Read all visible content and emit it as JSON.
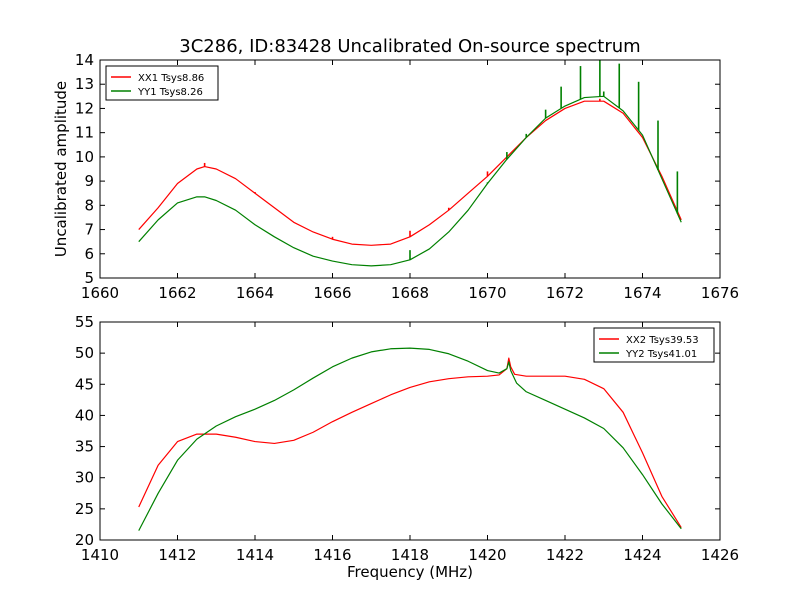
{
  "figure": {
    "title": "3C286, ID:83428 Uncalibrated On-source spectrum",
    "shared_xlabel": "Frequency (MHz)"
  },
  "chart_data": [
    {
      "type": "line",
      "title": "3C286, ID:83428 Uncalibrated On-source spectrum",
      "xlabel": "",
      "ylabel": "Uncalibrated amplitude",
      "xlim": [
        1660,
        1676
      ],
      "ylim": [
        5,
        14
      ],
      "xticks": [
        "1660",
        "1662",
        "1664",
        "1666",
        "1668",
        "1670",
        "1672",
        "1674",
        "1676"
      ],
      "yticks": [
        "5",
        "6",
        "7",
        "8",
        "9",
        "10",
        "11",
        "12",
        "13",
        "14"
      ],
      "grid": false,
      "legend_position": "top-left",
      "series": [
        {
          "name": "XX1 Tsys8.86",
          "color": "#ff0000",
          "x": [
            1661.0,
            1661.5,
            1662.0,
            1662.5,
            1662.7,
            1663.0,
            1663.5,
            1664.0,
            1664.5,
            1665.0,
            1665.5,
            1666.0,
            1666.5,
            1667.0,
            1667.5,
            1668.0,
            1668.5,
            1669.0,
            1669.5,
            1670.0,
            1670.5,
            1671.0,
            1671.5,
            1672.0,
            1672.5,
            1673.0,
            1673.5,
            1674.0,
            1674.5,
            1675.0
          ],
          "y": [
            7.0,
            7.9,
            8.9,
            9.5,
            9.6,
            9.5,
            9.1,
            8.5,
            7.9,
            7.3,
            6.9,
            6.6,
            6.4,
            6.35,
            6.4,
            6.7,
            7.2,
            7.8,
            8.5,
            9.2,
            10.0,
            10.8,
            11.5,
            12.0,
            12.3,
            12.3,
            11.8,
            10.8,
            9.2,
            7.4
          ],
          "spikes": [
            [
              1662.7,
              9.75
            ],
            [
              1664.0,
              8.55
            ],
            [
              1666.0,
              6.7
            ],
            [
              1668.0,
              6.95
            ],
            [
              1669.0,
              7.9
            ],
            [
              1670.0,
              9.4
            ],
            [
              1672.9,
              12.4
            ]
          ]
        },
        {
          "name": "YY1 Tsys8.26",
          "color": "#008000",
          "x": [
            1661.0,
            1661.5,
            1662.0,
            1662.5,
            1662.7,
            1663.0,
            1663.5,
            1664.0,
            1664.5,
            1665.0,
            1665.5,
            1666.0,
            1666.5,
            1667.0,
            1667.5,
            1668.0,
            1668.5,
            1669.0,
            1669.5,
            1670.0,
            1670.5,
            1671.0,
            1671.5,
            1672.0,
            1672.5,
            1673.0,
            1673.5,
            1674.0,
            1674.5,
            1675.0
          ],
          "y": [
            6.5,
            7.4,
            8.1,
            8.35,
            8.35,
            8.2,
            7.8,
            7.2,
            6.7,
            6.25,
            5.9,
            5.7,
            5.55,
            5.5,
            5.55,
            5.75,
            6.2,
            6.9,
            7.8,
            8.9,
            9.9,
            10.8,
            11.6,
            12.1,
            12.45,
            12.5,
            11.9,
            10.9,
            9.1,
            7.3
          ],
          "spikes": [
            [
              1668.0,
              6.15
            ],
            [
              1670.0,
              8.95
            ],
            [
              1670.5,
              10.2
            ],
            [
              1671.0,
              10.95
            ],
            [
              1671.5,
              11.95
            ],
            [
              1671.9,
              12.9
            ],
            [
              1672.4,
              13.75
            ],
            [
              1672.9,
              14.0
            ],
            [
              1673.0,
              12.7
            ],
            [
              1673.4,
              13.85
            ],
            [
              1673.9,
              13.1
            ],
            [
              1674.4,
              11.5
            ],
            [
              1674.9,
              9.4
            ]
          ]
        }
      ]
    },
    {
      "type": "line",
      "title": "",
      "xlabel": "Frequency (MHz)",
      "ylabel": "",
      "xlim": [
        1410,
        1426
      ],
      "ylim": [
        20,
        55
      ],
      "xticks": [
        "1410",
        "1412",
        "1414",
        "1416",
        "1418",
        "1420",
        "1422",
        "1424",
        "1426"
      ],
      "yticks": [
        "20",
        "25",
        "30",
        "35",
        "40",
        "45",
        "50",
        "55"
      ],
      "grid": false,
      "legend_position": "top-right",
      "series": [
        {
          "name": "XX2 Tsys39.53",
          "color": "#ff0000",
          "x": [
            1411.0,
            1411.5,
            1412.0,
            1412.5,
            1413.0,
            1413.5,
            1414.0,
            1414.5,
            1415.0,
            1415.5,
            1416.0,
            1416.5,
            1417.0,
            1417.5,
            1418.0,
            1418.5,
            1419.0,
            1419.5,
            1420.0,
            1420.3,
            1420.5,
            1420.55,
            1420.6,
            1420.7,
            1421.0,
            1421.5,
            1422.0,
            1422.5,
            1423.0,
            1423.5,
            1424.0,
            1424.5,
            1425.0
          ],
          "y": [
            25.3,
            32.0,
            35.8,
            37.0,
            37.0,
            36.5,
            35.8,
            35.5,
            36.0,
            37.3,
            39.0,
            40.5,
            41.9,
            43.3,
            44.5,
            45.4,
            45.9,
            46.2,
            46.3,
            46.5,
            47.5,
            49.2,
            47.8,
            46.6,
            46.3,
            46.3,
            46.3,
            45.8,
            44.3,
            40.5,
            34.0,
            27.0,
            22.0
          ]
        },
        {
          "name": "YY2 Tsys41.01",
          "color": "#008000",
          "x": [
            1411.0,
            1411.5,
            1412.0,
            1412.5,
            1413.0,
            1413.5,
            1414.0,
            1414.5,
            1415.0,
            1415.5,
            1416.0,
            1416.5,
            1417.0,
            1417.5,
            1418.0,
            1418.5,
            1419.0,
            1419.5,
            1420.0,
            1420.3,
            1420.5,
            1420.55,
            1420.6,
            1420.75,
            1421.0,
            1421.5,
            1422.0,
            1422.5,
            1423.0,
            1423.5,
            1424.0,
            1424.5,
            1425.0
          ],
          "y": [
            21.5,
            27.5,
            32.8,
            36.2,
            38.3,
            39.8,
            41.0,
            42.4,
            44.1,
            46.0,
            47.8,
            49.2,
            50.2,
            50.7,
            50.8,
            50.6,
            49.9,
            48.7,
            47.2,
            46.8,
            47.5,
            48.6,
            47.2,
            45.2,
            43.8,
            42.4,
            41.0,
            39.6,
            37.9,
            34.8,
            30.5,
            25.8,
            21.8
          ]
        }
      ]
    }
  ]
}
